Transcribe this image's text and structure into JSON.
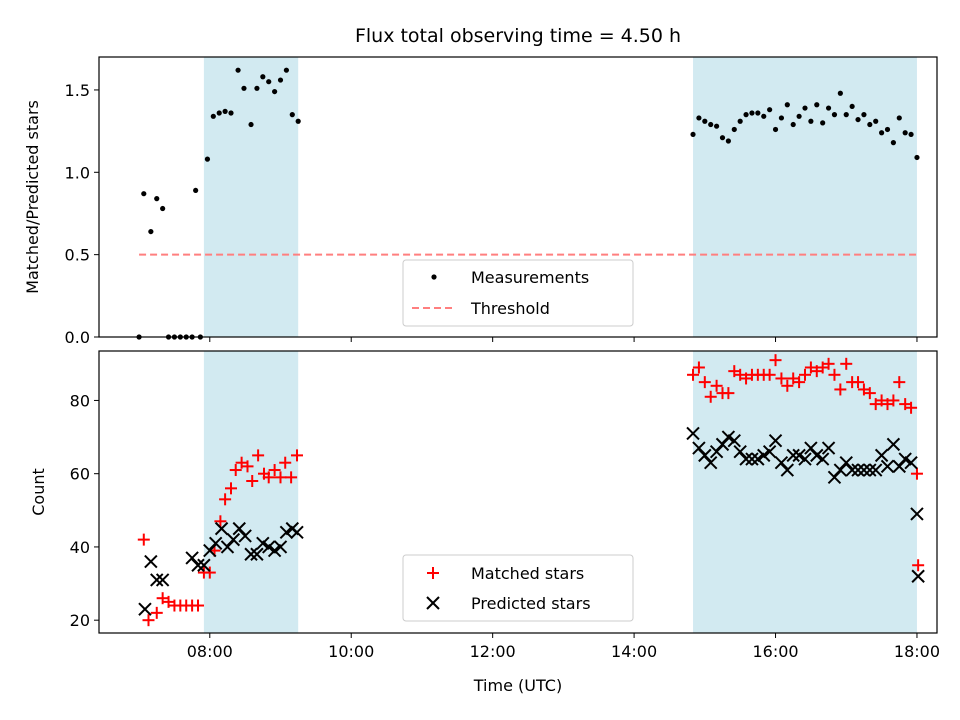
{
  "title": "Flux total observing time = 4.50 h",
  "xlabel": "Time (UTC)",
  "colors": {
    "shade": "#add8e6",
    "measurement": "#000000",
    "threshold": "#ff7f7f",
    "matched": "#ff0000",
    "predicted": "#000000"
  },
  "chart_data": [
    {
      "type": "scatter",
      "ylabel": "Matched/Predicted stars",
      "xlim": [
        "06:26",
        "18:17"
      ],
      "ylim": [
        0,
        1.7
      ],
      "x_ticks": [
        "08:00",
        "10:00",
        "12:00",
        "14:00",
        "16:00",
        "18:00"
      ],
      "x_tick_labels_shown": false,
      "y_ticks": [
        "0.0",
        "0.5",
        "1.0",
        "1.5"
      ],
      "legend": "lower center",
      "shaded_intervals": [
        [
          "07:55",
          "09:15"
        ],
        [
          "14:50",
          "18:00"
        ]
      ],
      "threshold": {
        "name": "Threshold",
        "y": 0.5,
        "x_range": [
          "07:00",
          "18:00"
        ],
        "style": "dashed"
      },
      "series": [
        {
          "name": "Measurements",
          "marker": "dot",
          "x": [
            "07:00",
            "07:04",
            "07:10",
            "07:15",
            "07:20",
            "07:25",
            "07:30",
            "07:35",
            "07:40",
            "07:45",
            "07:48",
            "07:52",
            "07:58",
            "08:03",
            "08:08",
            "08:13",
            "08:18",
            "08:24",
            "08:29",
            "08:35",
            "08:40",
            "08:45",
            "08:50",
            "08:55",
            "09:00",
            "09:05",
            "09:10",
            "09:15",
            "14:50",
            "14:55",
            "15:00",
            "15:05",
            "15:10",
            "15:15",
            "15:20",
            "15:25",
            "15:30",
            "15:35",
            "15:40",
            "15:45",
            "15:50",
            "15:55",
            "16:00",
            "16:05",
            "16:10",
            "16:15",
            "16:20",
            "16:25",
            "16:30",
            "16:35",
            "16:40",
            "16:45",
            "16:50",
            "16:55",
            "17:00",
            "17:05",
            "17:10",
            "17:15",
            "17:20",
            "17:25",
            "17:30",
            "17:35",
            "17:40",
            "17:45",
            "17:50",
            "17:55",
            "18:00"
          ],
          "y": [
            0.0,
            0.87,
            0.64,
            0.84,
            0.78,
            0.0,
            0.0,
            0.0,
            0.0,
            0.0,
            0.89,
            0.0,
            1.08,
            1.34,
            1.36,
            1.37,
            1.36,
            1.62,
            1.51,
            1.29,
            1.51,
            1.58,
            1.55,
            1.49,
            1.56,
            1.62,
            1.35,
            1.31,
            1.23,
            1.33,
            1.31,
            1.29,
            1.28,
            1.21,
            1.19,
            1.26,
            1.31,
            1.35,
            1.36,
            1.36,
            1.34,
            1.38,
            1.26,
            1.33,
            1.41,
            1.29,
            1.34,
            1.39,
            1.31,
            1.41,
            1.3,
            1.39,
            1.35,
            1.48,
            1.35,
            1.4,
            1.32,
            1.35,
            1.29,
            1.31,
            1.24,
            1.26,
            1.18,
            1.33,
            1.24,
            1.23,
            1.09
          ]
        }
      ]
    },
    {
      "type": "scatter",
      "ylabel": "Count",
      "xlim": [
        "06:26",
        "18:17"
      ],
      "ylim": [
        16.5,
        93.5
      ],
      "x_ticks": [
        "08:00",
        "10:00",
        "12:00",
        "14:00",
        "16:00",
        "18:00"
      ],
      "y_ticks": [
        "20",
        "40",
        "60",
        "80"
      ],
      "legend": "lower center",
      "shaded_intervals": [
        [
          "07:55",
          "09:15"
        ],
        [
          "14:50",
          "18:00"
        ]
      ],
      "series": [
        {
          "name": "Matched stars",
          "marker": "plus",
          "x": [
            "07:04",
            "07:08",
            "07:15",
            "07:20",
            "07:25",
            "07:30",
            "07:35",
            "07:40",
            "07:45",
            "07:50",
            "07:55",
            "08:00",
            "08:04",
            "08:09",
            "08:13",
            "08:18",
            "08:22",
            "08:27",
            "08:32",
            "08:36",
            "08:41",
            "08:46",
            "08:50",
            "08:55",
            "09:00",
            "09:04",
            "09:09",
            "09:14",
            "14:50",
            "14:55",
            "15:00",
            "15:05",
            "15:10",
            "15:15",
            "15:20",
            "15:25",
            "15:30",
            "15:35",
            "15:40",
            "15:45",
            "15:50",
            "15:55",
            "16:00",
            "16:05",
            "16:10",
            "16:15",
            "16:20",
            "16:25",
            "16:30",
            "16:35",
            "16:40",
            "16:45",
            "16:50",
            "16:55",
            "17:00",
            "17:05",
            "17:10",
            "17:15",
            "17:20",
            "17:25",
            "17:30",
            "17:35",
            "17:40",
            "17:45",
            "17:50",
            "17:55",
            "18:00",
            "18:01"
          ],
          "y": [
            42,
            20,
            22,
            26,
            25,
            24,
            24,
            24,
            24,
            24,
            33,
            33,
            39,
            47,
            53,
            56,
            61,
            63,
            62,
            58,
            65,
            60,
            59,
            61,
            59,
            63,
            59,
            65,
            87,
            89,
            85,
            81,
            84,
            82,
            82,
            88,
            87,
            86,
            87,
            87,
            87,
            87,
            91,
            86,
            84,
            86,
            85,
            87,
            89,
            88,
            89,
            90,
            87,
            83,
            90,
            85,
            85,
            83,
            82,
            79,
            80,
            79,
            80,
            85,
            79,
            78,
            60,
            35
          ]
        },
        {
          "name": "Predicted stars",
          "marker": "x",
          "x": [
            "07:05",
            "07:10",
            "07:15",
            "07:20",
            "07:45",
            "07:50",
            "07:55",
            "08:00",
            "08:05",
            "08:10",
            "08:15",
            "08:20",
            "08:25",
            "08:30",
            "08:35",
            "08:40",
            "08:45",
            "08:50",
            "08:55",
            "09:00",
            "09:05",
            "09:10",
            "09:14",
            "14:50",
            "14:55",
            "15:00",
            "15:05",
            "15:10",
            "15:15",
            "15:20",
            "15:25",
            "15:30",
            "15:35",
            "15:40",
            "15:45",
            "15:50",
            "15:55",
            "16:00",
            "16:05",
            "16:10",
            "16:15",
            "16:20",
            "16:25",
            "16:30",
            "16:35",
            "16:40",
            "16:45",
            "16:50",
            "16:55",
            "17:00",
            "17:05",
            "17:10",
            "17:15",
            "17:20",
            "17:25",
            "17:30",
            "17:35",
            "17:40",
            "17:45",
            "17:50",
            "17:55",
            "18:00",
            "18:01"
          ],
          "y": [
            23,
            36,
            31,
            31,
            37,
            35,
            35,
            39,
            41,
            45,
            40,
            42,
            45,
            43,
            38,
            38,
            41,
            40,
            39,
            40,
            44,
            45,
            44,
            71,
            67,
            65,
            63,
            66,
            68,
            70,
            69,
            66,
            64,
            64,
            64,
            65,
            66,
            69,
            63,
            61,
            65,
            65,
            64,
            67,
            65,
            64,
            67,
            59,
            61,
            63,
            61,
            61,
            61,
            61,
            61,
            65,
            62,
            68,
            62,
            64,
            63,
            49,
            32
          ]
        }
      ]
    }
  ]
}
